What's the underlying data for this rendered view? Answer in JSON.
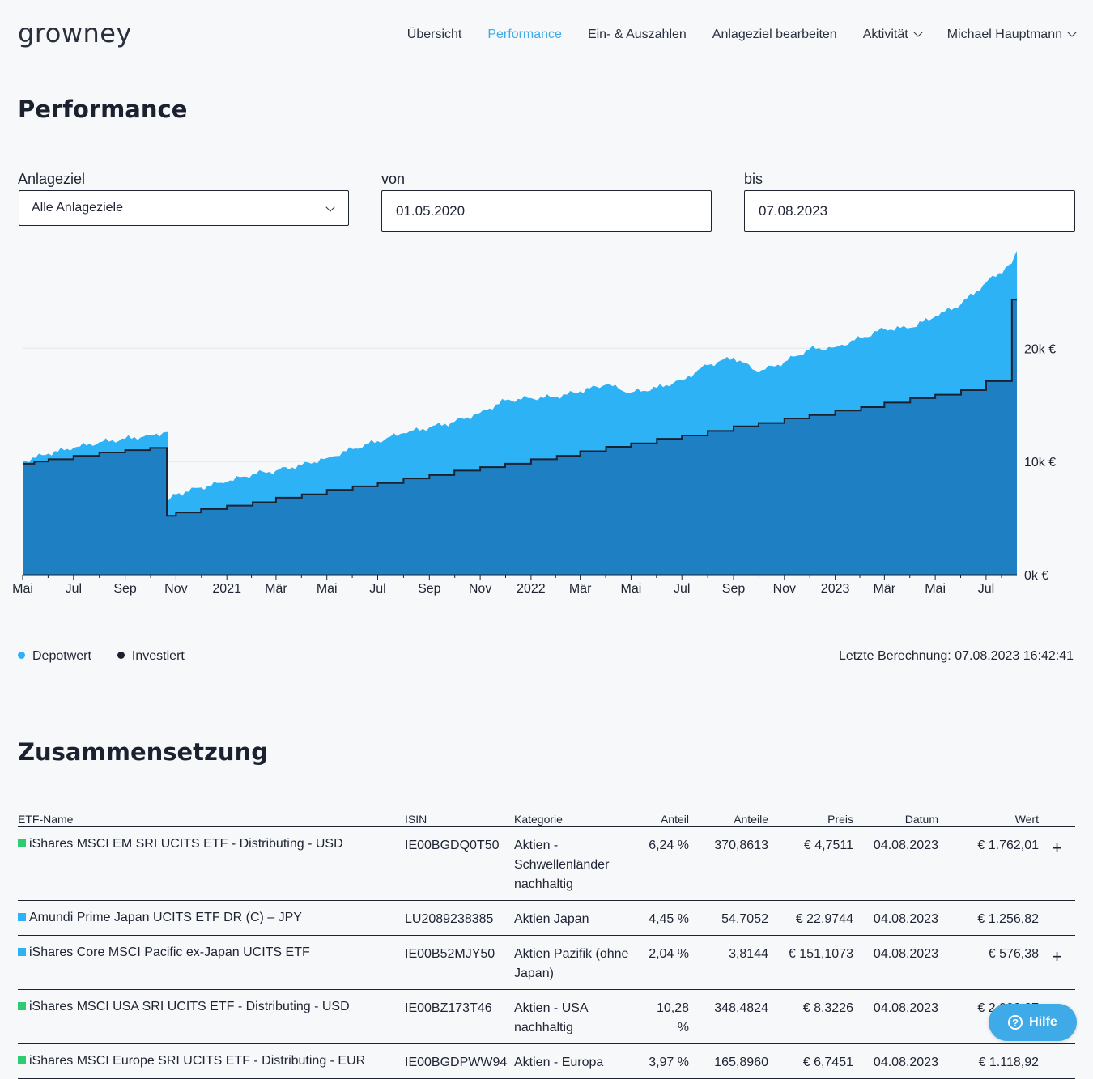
{
  "brand": {
    "logo_text": "growney"
  },
  "nav": {
    "items": [
      {
        "label": "Übersicht",
        "active": false
      },
      {
        "label": "Performance",
        "active": true
      },
      {
        "label": "Ein- & Auszahlen",
        "active": false
      },
      {
        "label": "Anlageziel bearbeiten",
        "active": false
      },
      {
        "label": "Aktivität",
        "active": false,
        "dropdown": true
      },
      {
        "label": "Michael Hauptmann",
        "active": false,
        "dropdown": true
      }
    ]
  },
  "page_title": "Performance",
  "filters": {
    "goal": {
      "label": "Anlageziel",
      "value": "Alle Anlageziele"
    },
    "from": {
      "label": "von",
      "value": "01.05.2020"
    },
    "to": {
      "label": "bis",
      "value": "07.08.2023"
    }
  },
  "legend": {
    "depot": "Depotwert",
    "invested": "Investiert"
  },
  "last_calc": "Letzte Berechnung: 07.08.2023 16:42:41",
  "colors": {
    "depot": "#2cb2f5",
    "invested": "#1e7fc2",
    "accent": "#3eaae8",
    "line": "#1c2130"
  },
  "chart_data": {
    "type": "area",
    "title": "",
    "xlabel": "",
    "ylabel": "",
    "ylim": [
      0,
      28600
    ],
    "y_ticks": [
      "0k €",
      "10k €",
      "20k €"
    ],
    "y_tick_values": [
      0,
      10000,
      20000
    ],
    "x_tick_labels": [
      "Mai",
      "Jul",
      "Sep",
      "Nov",
      "2021",
      "Mär",
      "Mai",
      "Jul",
      "Sep",
      "Nov",
      "2022",
      "Mär",
      "Mai",
      "Jul",
      "Sep",
      "Nov",
      "2023",
      "Mär",
      "Mai",
      "Jul"
    ],
    "x_tick_dates": [
      "2020-05-01",
      "2020-07-01",
      "2020-09-01",
      "2020-11-01",
      "2021-01-01",
      "2021-03-01",
      "2021-05-01",
      "2021-07-01",
      "2021-09-01",
      "2021-11-01",
      "2022-01-01",
      "2022-03-01",
      "2022-05-01",
      "2022-07-01",
      "2022-09-01",
      "2022-11-01",
      "2023-01-01",
      "2023-03-01",
      "2023-05-01",
      "2023-07-01"
    ],
    "x_range": [
      "2020-05-01",
      "2023-08-07"
    ],
    "grid": true,
    "legend_position": "bottom-left",
    "series": [
      {
        "name": "Depotwert",
        "type": "area",
        "x": [
          "2020-05-01",
          "2020-06-01",
          "2020-07-01",
          "2020-08-01",
          "2020-09-01",
          "2020-10-01",
          "2020-10-20",
          "2020-10-22",
          "2020-11-01",
          "2020-12-01",
          "2021-01-01",
          "2021-02-01",
          "2021-03-01",
          "2021-04-01",
          "2021-05-01",
          "2021-06-01",
          "2021-07-01",
          "2021-08-01",
          "2021-09-01",
          "2021-10-01",
          "2021-11-01",
          "2021-12-01",
          "2022-01-01",
          "2022-02-01",
          "2022-03-01",
          "2022-04-01",
          "2022-05-01",
          "2022-06-01",
          "2022-07-01",
          "2022-08-01",
          "2022-09-01",
          "2022-10-01",
          "2022-11-01",
          "2022-12-01",
          "2023-01-01",
          "2023-02-01",
          "2023-03-01",
          "2023-04-01",
          "2023-05-01",
          "2023-06-01",
          "2023-07-01",
          "2023-08-01",
          "2023-08-07"
        ],
        "values": [
          10000,
          10700,
          11200,
          11700,
          12000,
          12300,
          12600,
          6500,
          7100,
          7700,
          8200,
          8900,
          9200,
          9700,
          10300,
          11100,
          11800,
          12500,
          13000,
          13500,
          14300,
          15400,
          15600,
          15700,
          16200,
          16800,
          16100,
          16500,
          17200,
          18500,
          19200,
          17900,
          18800,
          19900,
          20100,
          20900,
          21700,
          21800,
          22800,
          23900,
          25800,
          27500,
          28600
        ]
      },
      {
        "name": "Investiert",
        "type": "step-line",
        "x": [
          "2020-05-01",
          "2020-05-15",
          "2020-06-01",
          "2020-07-01",
          "2020-08-01",
          "2020-09-01",
          "2020-10-01",
          "2020-10-21",
          "2020-11-01",
          "2020-12-01",
          "2021-01-01",
          "2021-02-01",
          "2021-03-01",
          "2021-04-01",
          "2021-05-01",
          "2021-06-01",
          "2021-07-01",
          "2021-08-01",
          "2021-09-01",
          "2021-10-01",
          "2021-11-01",
          "2021-12-01",
          "2022-01-01",
          "2022-02-01",
          "2022-03-01",
          "2022-04-01",
          "2022-05-01",
          "2022-06-01",
          "2022-07-01",
          "2022-08-01",
          "2022-09-01",
          "2022-10-01",
          "2022-11-01",
          "2022-12-01",
          "2023-01-01",
          "2023-02-01",
          "2023-03-01",
          "2023-04-01",
          "2023-05-01",
          "2023-06-01",
          "2023-07-01",
          "2023-08-01",
          "2023-08-07"
        ],
        "values": [
          9800,
          10000,
          10200,
          10500,
          10800,
          11000,
          11200,
          5200,
          5500,
          5800,
          6100,
          6400,
          6800,
          7100,
          7500,
          7800,
          8100,
          8500,
          8800,
          9200,
          9500,
          9800,
          10200,
          10500,
          10900,
          11300,
          11600,
          12000,
          12300,
          12700,
          13100,
          13400,
          13800,
          14100,
          14500,
          14800,
          15200,
          15600,
          15900,
          16300,
          17100,
          24300,
          24300
        ]
      }
    ]
  },
  "composition": {
    "title": "Zusammensetzung",
    "columns": {
      "name": "ETF-Name",
      "isin": "ISIN",
      "category": "Kategorie",
      "share": "Anteil",
      "units": "Anteile",
      "price": "Preis",
      "date": "Datum",
      "value": "Wert"
    },
    "rows": [
      {
        "color": "#2ecc71",
        "name": "iShares MSCI EM SRI UCITS ETF - Distributing - USD",
        "isin": "IE00BGDQ0T50",
        "category": "Aktien - Schwellenländer nachhaltig",
        "share": "6,24 %",
        "units": "370,8613",
        "price": "€ 4,7511",
        "date": "04.08.2023",
        "value": "€ 1.762,01",
        "expand": "+"
      },
      {
        "color": "#2cb2f5",
        "name": "Amundi Prime Japan UCITS ETF DR (C) – JPY",
        "isin": "LU2089238385",
        "category": "Aktien Japan",
        "share": "4,45 %",
        "units": "54,7052",
        "price": "€ 22,9744",
        "date": "04.08.2023",
        "value": "€ 1.256,82",
        "expand": ""
      },
      {
        "color": "#2cb2f5",
        "name": "iShares Core MSCI Pacific ex-Japan UCITS ETF",
        "isin": "IE00B52MJY50",
        "category": "Aktien Pazifik (ohne Japan)",
        "share": "2,04 %",
        "units": "3,8144",
        "price": "€ 151,1073",
        "date": "04.08.2023",
        "value": "€ 576,38",
        "expand": "+"
      },
      {
        "color": "#2ecc71",
        "name": "iShares MSCI USA SRI UCITS ETF - Distributing - USD",
        "isin": "IE00BZ173T46",
        "category": "Aktien - USA nachhaltig",
        "share": "10,28 %",
        "units": "348,4824",
        "price": "€ 8,3226",
        "date": "04.08.2023",
        "value": "€ 2.900,27",
        "expand": "+"
      },
      {
        "color": "#2ecc71",
        "name": "iShares MSCI Europe SRI UCITS ETF - Distributing - EUR",
        "isin": "IE00BGDPWW94",
        "category": "Aktien - Europa",
        "share": "3,97 %",
        "units": "165,8960",
        "price": "€ 6,7451",
        "date": "04.08.2023",
        "value": "€ 1.118,92",
        "expand": ""
      }
    ]
  },
  "help": {
    "label": "Hilfe",
    "icon": "question-icon"
  }
}
